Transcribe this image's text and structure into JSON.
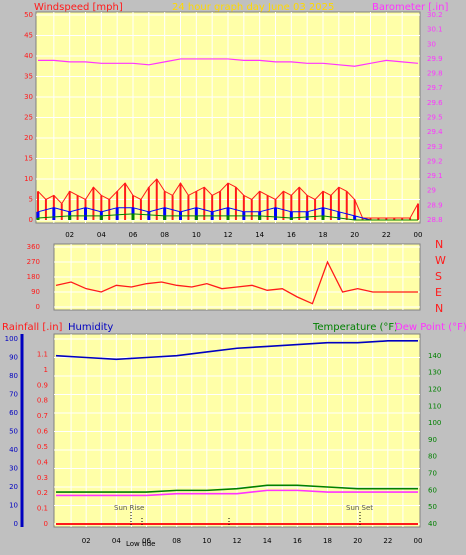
{
  "colors": {
    "background": "#c0c0c0",
    "plot_bg": "#ffffa8",
    "grid": "#ffffff",
    "wind": "#ff1a1a",
    "wind_avg": "#0000ff",
    "wind_min": "#008000",
    "barometer": "#ff33ff",
    "direction": "#ff1a1a",
    "rain": "#ff1a1a",
    "humidity": "#0000c0",
    "temperature": "#008000",
    "dewpoint": "#ff33ff",
    "title_yellow": "#ffd800"
  },
  "header": {
    "wind_label": "Windspeed [mph]",
    "title": "24 hour graph day   June 03 2025",
    "baro_label": "Barometer [.in]"
  },
  "rain_header": {
    "rain_label": "Rainfall [.in]",
    "humidity_label": "Humidity",
    "temp_label": "Temperature (°F)",
    "dew_label": "Dew Point (°F)"
  },
  "compass": [
    "N",
    "W",
    "S",
    "E",
    "N"
  ],
  "annotations": {
    "sunrise": "Sun Rise",
    "sunset": "Sun Set",
    "low_tide": "Low tide"
  },
  "chart_data": [
    {
      "type": "line",
      "name": "wind-barometer",
      "x_ticks": [
        "02",
        "04",
        "06",
        "08",
        "10",
        "12",
        "14",
        "16",
        "18",
        "20",
        "22",
        "00"
      ],
      "y_left": {
        "label": "Windspeed [mph]",
        "min": 0,
        "max": 50,
        "ticks": [
          "0",
          "5",
          "10",
          "15",
          "20",
          "25",
          "30",
          "35",
          "40",
          "45",
          "50"
        ]
      },
      "y_right": {
        "label": "Barometer [.in]",
        "min": 28.8,
        "max": 30.2,
        "ticks": [
          "28.8",
          "28.9",
          "29",
          "29.1",
          "29.2",
          "29.3",
          "29.4",
          "29.5",
          "29.6",
          "29.7",
          "29.8",
          "29.9",
          "30",
          "30.1",
          "30.2"
        ]
      },
      "series": [
        {
          "key": "barometer",
          "axis": "right",
          "x": [
            0,
            1,
            2,
            3,
            4,
            5,
            6,
            7,
            8,
            9,
            10,
            11,
            12,
            13,
            14,
            15,
            16,
            17,
            18,
            19,
            20,
            21,
            22,
            23,
            24
          ],
          "y": [
            29.89,
            29.89,
            29.88,
            29.88,
            29.87,
            29.87,
            29.87,
            29.86,
            29.88,
            29.9,
            29.9,
            29.9,
            29.9,
            29.89,
            29.89,
            29.88,
            29.88,
            29.87,
            29.87,
            29.86,
            29.85,
            29.87,
            29.89,
            29.88,
            29.87
          ]
        },
        {
          "key": "gust",
          "axis": "left",
          "x": [
            0,
            0.5,
            1,
            1.5,
            2,
            2.5,
            3,
            3.5,
            4,
            4.5,
            5,
            5.5,
            6,
            6.5,
            7,
            7.5,
            8,
            8.5,
            9,
            9.5,
            10,
            10.5,
            11,
            11.5,
            12,
            12.5,
            13,
            13.5,
            14,
            14.5,
            15,
            15.5,
            16,
            16.5,
            17,
            17.5,
            18,
            18.5,
            19,
            19.5,
            20,
            20.5,
            21,
            21.5,
            22,
            22.5,
            23,
            23.5,
            24
          ],
          "y": [
            7,
            5,
            6,
            4,
            7,
            6,
            5,
            8,
            6,
            5,
            7,
            9,
            6,
            5,
            8,
            10,
            7,
            6,
            9,
            6,
            7,
            8,
            6,
            7,
            9,
            8,
            6,
            5,
            7,
            6,
            5,
            7,
            6,
            8,
            6,
            5,
            7,
            6,
            8,
            7,
            5,
            0.5,
            0.5,
            0.5,
            0.5,
            0.5,
            0.5,
            0.5,
            4
          ]
        },
        {
          "key": "wind_avg",
          "axis": "left",
          "x": [
            0,
            1,
            2,
            3,
            4,
            5,
            6,
            7,
            8,
            9,
            10,
            11,
            12,
            13,
            14,
            15,
            16,
            17,
            18,
            19,
            20,
            21,
            22,
            23,
            24
          ],
          "y": [
            2,
            3,
            2,
            3,
            2,
            3,
            3,
            2,
            3,
            2,
            3,
            2,
            3,
            2,
            2,
            3,
            2,
            2,
            3,
            2,
            1,
            0,
            0,
            0,
            0
          ]
        },
        {
          "key": "wind_min",
          "axis": "left",
          "x": [
            0,
            2,
            4,
            6,
            8,
            10,
            12,
            14,
            16,
            18,
            20,
            22,
            24
          ],
          "y": [
            0.5,
            1,
            1,
            1.5,
            1,
            1,
            1,
            1,
            0.5,
            1,
            0,
            0,
            0
          ]
        }
      ]
    },
    {
      "type": "line",
      "name": "wind-direction",
      "y": {
        "min": 0,
        "max": 360,
        "ticks": [
          "0",
          "90",
          "180",
          "270",
          "360"
        ]
      },
      "series": [
        {
          "key": "direction",
          "x": [
            0,
            1,
            2,
            3,
            4,
            5,
            6,
            7,
            8,
            9,
            10,
            11,
            12,
            13,
            14,
            15,
            16,
            17,
            18,
            19,
            20,
            21,
            22,
            23,
            24
          ],
          "y": [
            130,
            150,
            110,
            90,
            130,
            120,
            140,
            150,
            130,
            120,
            140,
            110,
            120,
            130,
            100,
            110,
            60,
            20,
            270,
            90,
            110,
            90,
            90,
            90,
            90
          ]
        }
      ]
    },
    {
      "type": "line",
      "name": "rain-humidity-temperature",
      "y_left": {
        "label": "Rainfall [.in]",
        "min": 0,
        "max": 1.2,
        "ticks": [
          "0",
          "0.1",
          "0.2",
          "0.3",
          "0.4",
          "0.5",
          "0.6",
          "0.7",
          "0.8",
          "0.9",
          "1",
          "1.1"
        ]
      },
      "y_left_outer": {
        "label": "Humidity",
        "min": 0,
        "max": 100,
        "ticks": [
          "0",
          "10",
          "20",
          "30",
          "40",
          "50",
          "60",
          "70",
          "80",
          "90",
          "100"
        ]
      },
      "y_right": {
        "label": "Temperature (°F)",
        "min": 40,
        "max": 150,
        "ticks": [
          "40",
          "50",
          "60",
          "70",
          "80",
          "90",
          "100",
          "110",
          "120",
          "130",
          "140"
        ]
      },
      "series": [
        {
          "key": "humidity",
          "axis": "left_outer",
          "x": [
            0,
            2,
            4,
            6,
            8,
            10,
            12,
            14,
            16,
            18,
            20,
            22,
            24
          ],
          "y": [
            91,
            90,
            89,
            90,
            91,
            93,
            95,
            96,
            97,
            98,
            98,
            99,
            99
          ]
        },
        {
          "key": "temperature",
          "axis": "right",
          "x": [
            0,
            2,
            4,
            6,
            8,
            10,
            12,
            14,
            16,
            18,
            20,
            22,
            24
          ],
          "y": [
            59,
            59,
            59,
            59,
            60,
            60,
            61,
            63,
            63,
            62,
            61,
            61,
            61
          ]
        },
        {
          "key": "dewpoint",
          "axis": "right",
          "x": [
            0,
            2,
            4,
            6,
            8,
            10,
            12,
            14,
            16,
            18,
            20,
            22,
            24
          ],
          "y": [
            57,
            57,
            57,
            57,
            58,
            58,
            58,
            60,
            60,
            59,
            59,
            59,
            59
          ]
        },
        {
          "key": "rainfall",
          "axis": "left",
          "x": [
            0,
            24
          ],
          "y": [
            0,
            0
          ]
        }
      ]
    }
  ]
}
